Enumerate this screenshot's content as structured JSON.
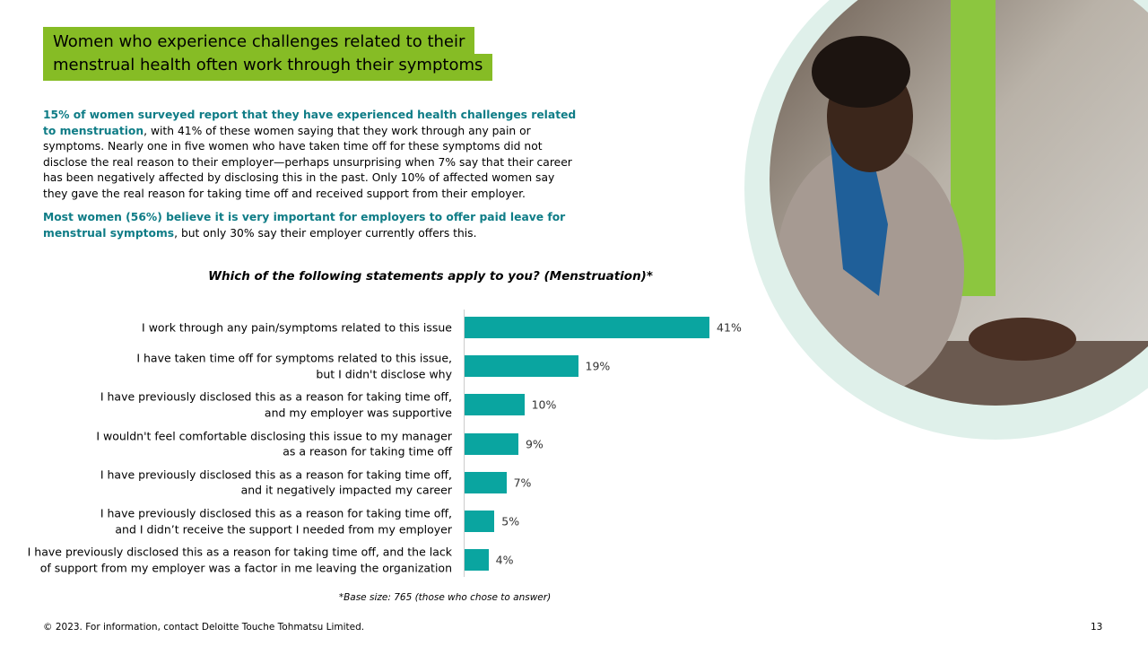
{
  "header": {
    "title": [
      "Women who experience challenges related to their",
      "menstrual health often work through their symptoms"
    ]
  },
  "paragraphs": [
    {
      "bold": "15% of women surveyed report that they have experienced health challenges related to menstruation",
      "text": ", with 41% of these women saying that they work through any pain or symptoms. Nearly one in five women who have taken time off for these symptoms did not disclose the real reason to their employer—perhaps unsurprising when 7% say that their career has been negatively affected by disclosing this in the past. Only 10% of affected women say they gave the real reason for taking time off and received support from their employer."
    },
    {
      "bold": "Most women (56%) believe it is very important for employers to offer paid leave for menstrual symptoms",
      "text": ", but only 30% say their employer currently offers this."
    }
  ],
  "chart_data": {
    "type": "bar",
    "orientation": "horizontal",
    "title": "Which of the following statements apply to you? (Menstruation)*",
    "categories": [
      "I work through any pain/symptoms related to this issue",
      "I have taken time off for symptoms related to this issue,\nbut I didn't disclose why",
      "I have previously disclosed this as a reason for taking time off,\nand my employer was supportive",
      "I wouldn't feel comfortable disclosing this issue to my manager\nas a reason for taking time off",
      "I have previously disclosed this as a reason for taking time off,\nand it negatively impacted my career",
      "I have previously disclosed this as a reason for taking time off,\nand I didn’t receive the support I needed from my employer",
      "I have previously disclosed this as a reason for taking time off, and the lack\nof support from my employer was a factor in me leaving the organization"
    ],
    "values": [
      41,
      19,
      10,
      9,
      7,
      5,
      4
    ],
    "value_labels": [
      "41%",
      "19%",
      "10%",
      "9%",
      "7%",
      "5%",
      "4%"
    ],
    "color": "#0aa5a0",
    "note": "*Base size: 765 (those who chose to answer)"
  },
  "footer": {
    "text": "© 2023. For information, contact Deloitte Touche Tohmatsu Limited.",
    "page": "13"
  }
}
